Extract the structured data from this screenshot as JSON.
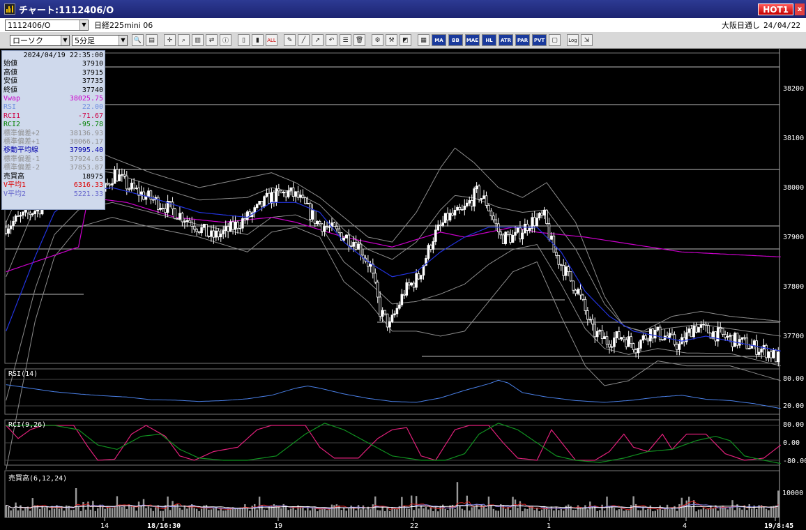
{
  "window": {
    "title": "チャート:1112406/O",
    "hot_label": "HOT1",
    "close_label": "x"
  },
  "toolbar": {
    "symbol_code": "1112406/O",
    "symbol_name": "日経225mini 06",
    "session": "大阪日通し",
    "date": "24/04/22",
    "chart_type": "ローソク",
    "interval": "5分足",
    "buttons": [
      "MA",
      "BB",
      "MAE",
      "HL",
      "ATR",
      "PAR",
      "PVT",
      "Log"
    ]
  },
  "info_panel": {
    "datetime": "2024/04/19  22:35:00",
    "rows": [
      {
        "label": "始値",
        "value": "37910",
        "cls": ""
      },
      {
        "label": "高値",
        "value": "37915",
        "cls": ""
      },
      {
        "label": "安値",
        "value": "37735",
        "cls": ""
      },
      {
        "label": "終値",
        "value": "37740",
        "cls": ""
      },
      {
        "label": "Vwap",
        "value": "38025.75",
        "cls": "vw"
      },
      {
        "label": "RSI",
        "value": "22.00",
        "cls": "rs"
      },
      {
        "label": "RCI1",
        "value": "-71.67",
        "cls": "rc1"
      },
      {
        "label": "RCI2",
        "value": "-95.78",
        "cls": "rc2"
      },
      {
        "label": "標準偏差+2",
        "value": "38136.93",
        "cls": "gy"
      },
      {
        "label": "標準偏差+1",
        "value": "38066.17",
        "cls": "gy"
      },
      {
        "label": "移動平均線",
        "value": "37995.40",
        "cls": "ma"
      },
      {
        "label": "標準偏差-1",
        "value": "37924.63",
        "cls": "gy"
      },
      {
        "label": "標準偏差-2",
        "value": "37853.87",
        "cls": "gy"
      },
      {
        "label": "売買高",
        "value": "18975",
        "cls": ""
      },
      {
        "label": "V平均1",
        "value": "6316.33",
        "cls": "v1"
      },
      {
        "label": "V平均2",
        "value": "5221.33",
        "cls": "v2"
      }
    ]
  },
  "chart_data": {
    "type": "candlestick",
    "price_axis": {
      "ticks": [
        "38200",
        "38100",
        "38000",
        "37900",
        "37800",
        "37700"
      ],
      "range": [
        37640,
        38240
      ]
    },
    "x_ticks": [
      {
        "label": "14",
        "bold": false
      },
      {
        "label": "18/16:30",
        "bold": true
      },
      {
        "label": "19",
        "bold": false
      },
      {
        "label": "22",
        "bold": false
      },
      {
        "label": "1",
        "bold": false
      },
      {
        "label": "4",
        "bold": false
      },
      {
        "label": "19/8:45",
        "bold": true
      }
    ],
    "close_path": [
      [
        0,
        38010
      ],
      [
        15,
        38050
      ],
      [
        25,
        38150
      ],
      [
        32,
        38080
      ],
      [
        40,
        38070
      ],
      [
        46,
        38120
      ],
      [
        52,
        38090
      ],
      [
        60,
        38070
      ],
      [
        68,
        38050
      ],
      [
        78,
        38020
      ],
      [
        86,
        37990
      ],
      [
        92,
        38000
      ],
      [
        98,
        38020
      ],
      [
        104,
        38040
      ],
      [
        110,
        38070
      ],
      [
        118,
        38080
      ],
      [
        122,
        38070
      ],
      [
        130,
        38020
      ],
      [
        138,
        38000
      ],
      [
        146,
        37980
      ],
      [
        152,
        37930
      ],
      [
        156,
        37840
      ],
      [
        160,
        37810
      ],
      [
        166,
        37880
      ],
      [
        172,
        37910
      ],
      [
        178,
        37990
      ],
      [
        184,
        38030
      ],
      [
        190,
        38040
      ],
      [
        196,
        38080
      ],
      [
        200,
        38060
      ],
      [
        206,
        37990
      ],
      [
        212,
        37990
      ],
      [
        218,
        38020
      ],
      [
        224,
        38030
      ],
      [
        228,
        37960
      ],
      [
        234,
        37910
      ],
      [
        238,
        37880
      ],
      [
        244,
        37800
      ],
      [
        250,
        37780
      ],
      [
        256,
        37790
      ],
      [
        262,
        37770
      ],
      [
        268,
        37800
      ],
      [
        274,
        37790
      ],
      [
        280,
        37770
      ],
      [
        286,
        37810
      ],
      [
        292,
        37800
      ],
      [
        298,
        37790
      ],
      [
        304,
        37780
      ],
      [
        310,
        37770
      ],
      [
        316,
        37760
      ],
      [
        321,
        37745
      ]
    ],
    "bb_upper": [
      [
        0,
        38020
      ],
      [
        10,
        38130
      ],
      [
        20,
        38190
      ],
      [
        30,
        38180
      ],
      [
        44,
        38150
      ],
      [
        60,
        38120
      ],
      [
        80,
        38090
      ],
      [
        100,
        38110
      ],
      [
        110,
        38120
      ],
      [
        120,
        38100
      ],
      [
        130,
        38070
      ],
      [
        140,
        38030
      ],
      [
        150,
        37990
      ],
      [
        160,
        37980
      ],
      [
        170,
        38040
      ],
      [
        180,
        38130
      ],
      [
        186,
        38170
      ],
      [
        194,
        38140
      ],
      [
        204,
        38090
      ],
      [
        214,
        38070
      ],
      [
        224,
        38100
      ],
      [
        236,
        38020
      ],
      [
        248,
        37870
      ],
      [
        256,
        37810
      ],
      [
        264,
        37800
      ],
      [
        276,
        37830
      ],
      [
        288,
        37840
      ],
      [
        300,
        37830
      ],
      [
        321,
        37820
      ]
    ],
    "bb_mid": [
      [
        0,
        37800
      ],
      [
        12,
        37950
      ],
      [
        20,
        38040
      ],
      [
        30,
        38080
      ],
      [
        44,
        38090
      ],
      [
        60,
        38070
      ],
      [
        80,
        38040
      ],
      [
        100,
        38030
      ],
      [
        110,
        38060
      ],
      [
        120,
        38060
      ],
      [
        130,
        38040
      ],
      [
        140,
        37980
      ],
      [
        150,
        37940
      ],
      [
        160,
        37910
      ],
      [
        170,
        37920
      ],
      [
        180,
        37960
      ],
      [
        190,
        37990
      ],
      [
        200,
        38010
      ],
      [
        210,
        38010
      ],
      [
        220,
        38010
      ],
      [
        230,
        37960
      ],
      [
        240,
        37880
      ],
      [
        250,
        37830
      ],
      [
        260,
        37800
      ],
      [
        270,
        37790
      ],
      [
        280,
        37780
      ],
      [
        290,
        37790
      ],
      [
        300,
        37780
      ],
      [
        321,
        37760
      ]
    ],
    "bb_lower": [
      [
        0,
        37520
      ],
      [
        12,
        37820
      ],
      [
        20,
        37950
      ],
      [
        30,
        38010
      ],
      [
        44,
        38030
      ],
      [
        60,
        38010
      ],
      [
        80,
        37990
      ],
      [
        100,
        37960
      ],
      [
        110,
        38000
      ],
      [
        120,
        38010
      ],
      [
        130,
        37990
      ],
      [
        140,
        37900
      ],
      [
        150,
        37860
      ],
      [
        160,
        37800
      ],
      [
        170,
        37800
      ],
      [
        180,
        37790
      ],
      [
        190,
        37800
      ],
      [
        200,
        37860
      ],
      [
        210,
        37920
      ],
      [
        220,
        37940
      ],
      [
        230,
        37830
      ],
      [
        240,
        37730
      ],
      [
        248,
        37690
      ],
      [
        258,
        37700
      ],
      [
        270,
        37740
      ],
      [
        282,
        37730
      ],
      [
        300,
        37730
      ],
      [
        321,
        37700
      ]
    ],
    "vwap": [
      [
        0,
        37920
      ],
      [
        30,
        37970
      ],
      [
        34,
        38070
      ],
      [
        50,
        38060
      ],
      [
        70,
        38030
      ],
      [
        90,
        38020
      ],
      [
        110,
        38030
      ],
      [
        120,
        38020
      ],
      [
        140,
        37990
      ],
      [
        160,
        37970
      ],
      [
        180,
        38000
      ],
      [
        190,
        37990
      ],
      [
        200,
        38000
      ],
      [
        210,
        38010
      ],
      [
        220,
        38000
      ],
      [
        240,
        37990
      ],
      [
        280,
        37960
      ],
      [
        321,
        37950
      ]
    ],
    "rsi": {
      "label": "RSI(14)",
      "ticks": [
        "80.00",
        "20.00"
      ],
      "values": [
        [
          0,
          68
        ],
        [
          10,
          60
        ],
        [
          20,
          52
        ],
        [
          30,
          47
        ],
        [
          40,
          43
        ],
        [
          50,
          40
        ],
        [
          60,
          34
        ],
        [
          70,
          33
        ],
        [
          80,
          30
        ],
        [
          90,
          32
        ],
        [
          100,
          36
        ],
        [
          110,
          44
        ],
        [
          120,
          60
        ],
        [
          125,
          65
        ],
        [
          130,
          60
        ],
        [
          140,
          47
        ],
        [
          150,
          37
        ],
        [
          160,
          30
        ],
        [
          170,
          28
        ],
        [
          180,
          38
        ],
        [
          190,
          55
        ],
        [
          200,
          70
        ],
        [
          204,
          78
        ],
        [
          208,
          72
        ],
        [
          214,
          50
        ],
        [
          224,
          40
        ],
        [
          236,
          32
        ],
        [
          248,
          28
        ],
        [
          260,
          33
        ],
        [
          270,
          40
        ],
        [
          280,
          44
        ],
        [
          290,
          35
        ],
        [
          300,
          32
        ],
        [
          310,
          25
        ],
        [
          321,
          14
        ]
      ]
    },
    "rci": {
      "label": "RCI(9,26)",
      "ticks": [
        "80.00",
        "0.00",
        "-80.00"
      ],
      "rci1": [
        [
          0,
          80
        ],
        [
          5,
          20
        ],
        [
          10,
          60
        ],
        [
          15,
          80
        ],
        [
          20,
          80
        ],
        [
          28,
          80
        ],
        [
          34,
          -20
        ],
        [
          38,
          -80
        ],
        [
          45,
          -75
        ],
        [
          52,
          40
        ],
        [
          58,
          80
        ],
        [
          66,
          30
        ],
        [
          72,
          -60
        ],
        [
          78,
          -80
        ],
        [
          86,
          -40
        ],
        [
          96,
          -20
        ],
        [
          104,
          60
        ],
        [
          110,
          80
        ],
        [
          118,
          80
        ],
        [
          124,
          80
        ],
        [
          130,
          -20
        ],
        [
          136,
          -70
        ],
        [
          146,
          -70
        ],
        [
          154,
          20
        ],
        [
          160,
          60
        ],
        [
          166,
          70
        ],
        [
          172,
          -60
        ],
        [
          178,
          -80
        ],
        [
          186,
          60
        ],
        [
          192,
          80
        ],
        [
          200,
          80
        ],
        [
          206,
          0
        ],
        [
          212,
          -70
        ],
        [
          220,
          -80
        ],
        [
          226,
          60
        ],
        [
          236,
          -80
        ],
        [
          244,
          -80
        ],
        [
          250,
          -40
        ],
        [
          256,
          40
        ],
        [
          260,
          -20
        ],
        [
          266,
          -40
        ],
        [
          272,
          40
        ],
        [
          276,
          -30
        ],
        [
          282,
          40
        ],
        [
          290,
          40
        ],
        [
          298,
          -50
        ],
        [
          306,
          -80
        ],
        [
          314,
          -70
        ],
        [
          321,
          -10
        ]
      ],
      "rci2": [
        [
          0,
          80
        ],
        [
          10,
          80
        ],
        [
          20,
          80
        ],
        [
          30,
          60
        ],
        [
          38,
          -10
        ],
        [
          46,
          -30
        ],
        [
          56,
          30
        ],
        [
          64,
          40
        ],
        [
          72,
          -30
        ],
        [
          80,
          -70
        ],
        [
          90,
          -80
        ],
        [
          100,
          -80
        ],
        [
          112,
          -60
        ],
        [
          124,
          40
        ],
        [
          132,
          90
        ],
        [
          140,
          60
        ],
        [
          150,
          0
        ],
        [
          160,
          -60
        ],
        [
          172,
          -80
        ],
        [
          182,
          -80
        ],
        [
          190,
          -50
        ],
        [
          196,
          40
        ],
        [
          204,
          90
        ],
        [
          212,
          60
        ],
        [
          220,
          0
        ],
        [
          228,
          -60
        ],
        [
          236,
          -80
        ],
        [
          246,
          -90
        ],
        [
          256,
          -70
        ],
        [
          266,
          -40
        ],
        [
          276,
          -30
        ],
        [
          286,
          10
        ],
        [
          294,
          30
        ],
        [
          300,
          10
        ],
        [
          306,
          -60
        ],
        [
          314,
          -80
        ],
        [
          321,
          -95
        ]
      ]
    },
    "volume": {
      "label": "売買高(6,12,24)",
      "ticks": [
        "10000"
      ],
      "max": 15000
    }
  }
}
